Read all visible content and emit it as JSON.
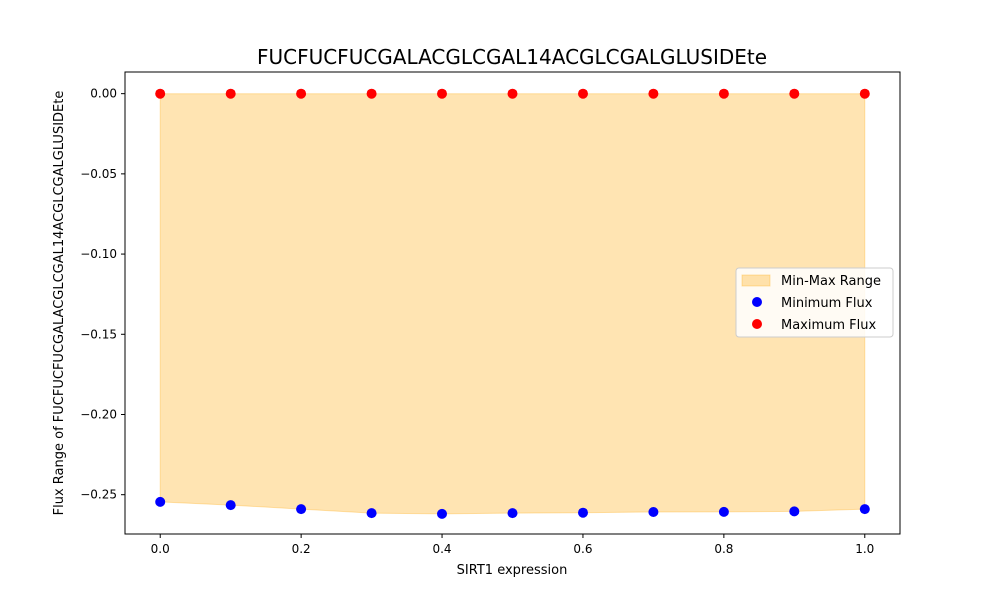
{
  "chart_data": {
    "type": "scatter",
    "title": "FUCFUCFUCGALACGLCGAL14ACGLCGALGLUSIDEte",
    "xlabel": "SIRT1 expression",
    "ylabel": "Flux Range of FUCFUCFUCGALACGLCGAL14ACGLCGALGLUSIDEte",
    "xlim": [
      -0.05,
      1.05
    ],
    "ylim": [
      -0.2745,
      0.0135
    ],
    "x_ticks": [
      "0.0",
      "0.2",
      "0.4",
      "0.6",
      "0.8",
      "1.0"
    ],
    "y_ticks": [
      "0.00",
      "−0.05",
      "−0.10",
      "−0.15",
      "−0.20",
      "−0.25"
    ],
    "x": [
      0.0,
      0.1,
      0.2,
      0.3,
      0.4,
      0.5,
      0.6,
      0.7,
      0.8,
      0.9,
      1.0
    ],
    "series": [
      {
        "name": "Minimum Flux",
        "color": "#0000ff",
        "values": [
          -0.2545,
          -0.2565,
          -0.259,
          -0.2615,
          -0.262,
          -0.2615,
          -0.2612,
          -0.2608,
          -0.2607,
          -0.2604,
          -0.259
        ]
      },
      {
        "name": "Maximum Flux",
        "color": "#ff0000",
        "values": [
          0,
          0,
          0,
          0,
          0,
          0,
          0,
          0,
          0,
          0,
          0
        ]
      }
    ],
    "fill": {
      "name": "Min-Max Range",
      "color": "#ffa500",
      "opacity": 0.3
    },
    "legend_position": "center-right",
    "grid": false
  }
}
